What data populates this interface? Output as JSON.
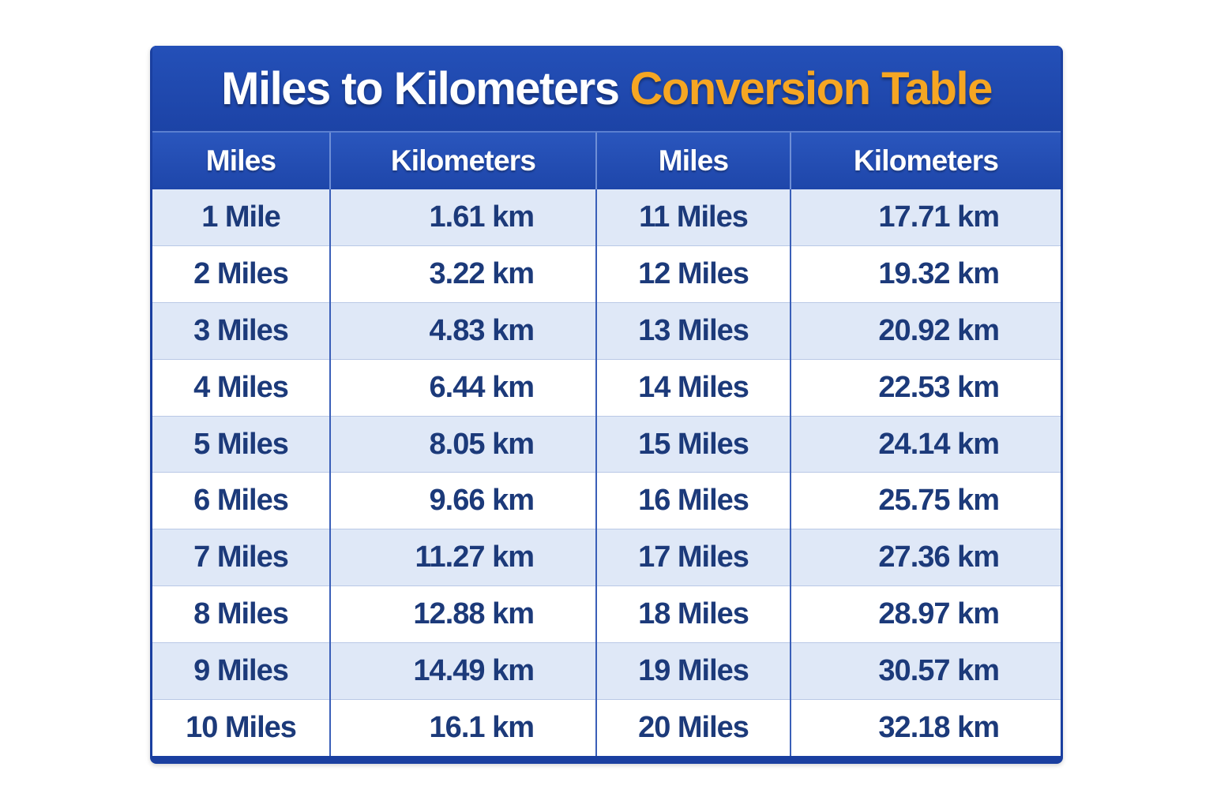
{
  "title": {
    "main": "Miles to Kilometers",
    "accent": "Conversion Table"
  },
  "colors": {
    "header_blue": "#1e46aa",
    "accent_orange": "#f5a623",
    "text_navy": "#1c3a7a",
    "stripe": "#dfe8f7"
  },
  "headers": [
    "Miles",
    "Kilometers",
    "Miles",
    "Kilometers"
  ],
  "rows": [
    [
      "1 Mile",
      "1.61 km",
      "11 Miles",
      "17.71 km"
    ],
    [
      "2 Miles",
      "3.22 km",
      "12 Miles",
      "19.32 km"
    ],
    [
      "3 Miles",
      "4.83 km",
      "13 Miles",
      "20.92 km"
    ],
    [
      "4 Miles",
      "6.44 km",
      "14 Miles",
      "22.53 km"
    ],
    [
      "5 Miles",
      "8.05 km",
      "15 Miles",
      "24.14 km"
    ],
    [
      "6 Miles",
      "9.66 km",
      "16 Miles",
      "25.75 km"
    ],
    [
      "7 Miles",
      "11.27 km",
      "17 Miles",
      "27.36 km"
    ],
    [
      "8 Miles",
      "12.88 km",
      "18 Miles",
      "28.97 km"
    ],
    [
      "9 Miles",
      "14.49 km",
      "19 Miles",
      "30.57 km"
    ],
    [
      "10 Miles",
      "16.1 km",
      "20 Miles",
      "32.18 km"
    ]
  ]
}
